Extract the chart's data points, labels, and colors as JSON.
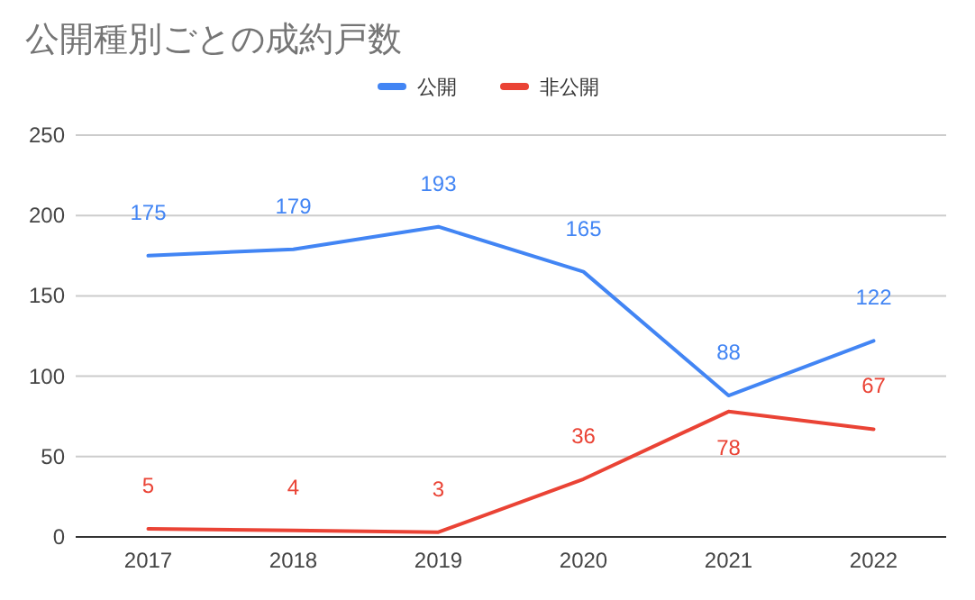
{
  "chart_data": {
    "type": "line",
    "title": "公開種別ごとの成約戸数",
    "categories": [
      "2017",
      "2018",
      "2019",
      "2020",
      "2021",
      "2022"
    ],
    "series": [
      {
        "name": "公開",
        "color": "#4285f4",
        "values": [
          175,
          179,
          193,
          165,
          88,
          122
        ]
      },
      {
        "name": "非公開",
        "color": "#ea4335",
        "values": [
          5,
          4,
          3,
          36,
          78,
          67
        ]
      }
    ],
    "ylim": [
      0,
      250
    ],
    "yticks": [
      0,
      50,
      100,
      150,
      200,
      250
    ],
    "grid": "y",
    "legend": "top",
    "data_labels": true,
    "marker": "none",
    "line_style": "solid"
  }
}
